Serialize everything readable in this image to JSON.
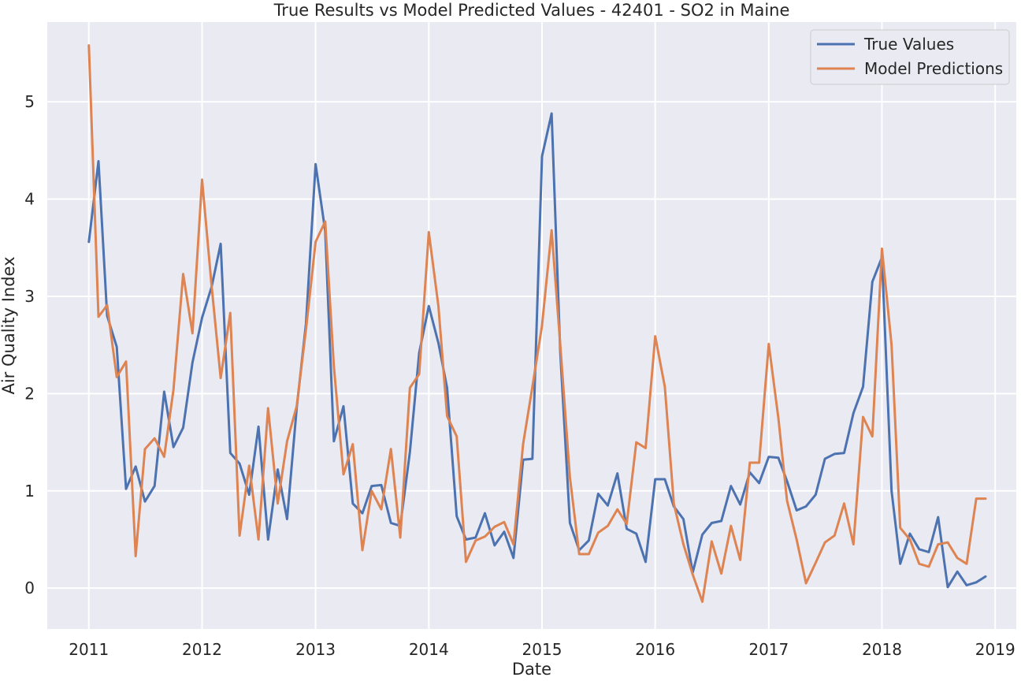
{
  "chart_data": {
    "type": "line",
    "title": "True Results vs Model Predicted Values - 42401 - SO2 in Maine",
    "xlabel": "Date",
    "ylabel": "Air Quality Index",
    "xlim": [
      "2010-08-20",
      "2019-03-10"
    ],
    "ylim": [
      -0.42,
      5.82
    ],
    "x_ticks": [
      "2011",
      "2012",
      "2013",
      "2014",
      "2015",
      "2016",
      "2017",
      "2018",
      "2019"
    ],
    "y_ticks": [
      0,
      1,
      2,
      3,
      4,
      5
    ],
    "grid": true,
    "legend_position": "top-right",
    "colors": {
      "background": "#eaeaf2",
      "grid": "#ffffff",
      "true_values": "#4c72b0",
      "model_predictions": "#dd8452"
    },
    "x": [
      "2011-01",
      "2011-02",
      "2011-03",
      "2011-04",
      "2011-05",
      "2011-06",
      "2011-07",
      "2011-08",
      "2011-09",
      "2011-10",
      "2011-11",
      "2011-12",
      "2012-01",
      "2012-02",
      "2012-03",
      "2012-04",
      "2012-05",
      "2012-06",
      "2012-07",
      "2012-08",
      "2012-09",
      "2012-10",
      "2012-11",
      "2012-12",
      "2013-01",
      "2013-02",
      "2013-03",
      "2013-04",
      "2013-05",
      "2013-06",
      "2013-07",
      "2013-08",
      "2013-09",
      "2013-10",
      "2013-11",
      "2013-12",
      "2014-01",
      "2014-02",
      "2014-03",
      "2014-04",
      "2014-05",
      "2014-06",
      "2014-07",
      "2014-08",
      "2014-09",
      "2014-10",
      "2014-11",
      "2014-12",
      "2015-01",
      "2015-02",
      "2015-03",
      "2015-04",
      "2015-05",
      "2015-06",
      "2015-07",
      "2015-08",
      "2015-09",
      "2015-10",
      "2015-11",
      "2015-12",
      "2016-01",
      "2016-02",
      "2016-03",
      "2016-04",
      "2016-05",
      "2016-06",
      "2016-07",
      "2016-08",
      "2016-09",
      "2016-10",
      "2016-11",
      "2016-12",
      "2017-01",
      "2017-02",
      "2017-03",
      "2017-04",
      "2017-05",
      "2017-06",
      "2017-07",
      "2017-08",
      "2017-09",
      "2017-10",
      "2017-11",
      "2017-12",
      "2018-01",
      "2018-02",
      "2018-03",
      "2018-04",
      "2018-05",
      "2018-06",
      "2018-07",
      "2018-08",
      "2018-09",
      "2018-10",
      "2018-11",
      "2018-12"
    ],
    "series": [
      {
        "name": "True Values",
        "color": "#4c72b0",
        "values": [
          3.56,
          4.39,
          2.8,
          2.48,
          1.02,
          1.25,
          0.89,
          1.05,
          2.02,
          1.45,
          1.65,
          2.32,
          2.78,
          3.1,
          3.54,
          1.39,
          1.28,
          0.96,
          1.66,
          0.5,
          1.22,
          0.71,
          1.85,
          2.72,
          4.36,
          3.67,
          1.51,
          1.87,
          0.87,
          0.77,
          1.05,
          1.06,
          0.67,
          0.64,
          1.4,
          2.42,
          2.9,
          2.52,
          2.06,
          0.74,
          0.5,
          0.52,
          0.77,
          0.44,
          0.58,
          0.31,
          1.32,
          1.33,
          4.44,
          4.88,
          2.42,
          0.67,
          0.39,
          0.49,
          0.97,
          0.85,
          1.18,
          0.61,
          0.56,
          0.27,
          1.12,
          1.12,
          0.84,
          0.71,
          0.16,
          0.55,
          0.67,
          0.69,
          1.05,
          0.86,
          1.19,
          1.08,
          1.35,
          1.34,
          1.1,
          0.8,
          0.84,
          0.96,
          1.33,
          1.38,
          1.39,
          1.8,
          2.07,
          3.15,
          3.4,
          1.0,
          0.25,
          0.56,
          0.4,
          0.37,
          0.73,
          0.01,
          0.17,
          0.03,
          0.06,
          0.12
        ]
      },
      {
        "name": "Model Predictions",
        "color": "#dd8452",
        "values": [
          5.58,
          2.79,
          2.91,
          2.17,
          2.33,
          0.33,
          1.43,
          1.54,
          1.35,
          2.04,
          3.23,
          2.62,
          4.2,
          3.1,
          2.16,
          2.83,
          0.54,
          1.26,
          0.5,
          1.85,
          0.87,
          1.51,
          1.87,
          2.66,
          3.56,
          3.77,
          2.28,
          1.17,
          1.48,
          0.39,
          1.0,
          0.81,
          1.43,
          0.52,
          2.06,
          2.2,
          3.66,
          2.9,
          1.77,
          1.56,
          0.27,
          0.49,
          0.53,
          0.63,
          0.68,
          0.45,
          1.48,
          2.07,
          2.7,
          3.68,
          2.5,
          1.14,
          0.35,
          0.35,
          0.57,
          0.64,
          0.81,
          0.66,
          1.5,
          1.44,
          2.59,
          2.07,
          0.87,
          0.45,
          0.14,
          -0.14,
          0.48,
          0.15,
          0.64,
          0.29,
          1.29,
          1.29,
          2.51,
          1.75,
          0.9,
          0.5,
          0.05,
          0.26,
          0.47,
          0.54,
          0.87,
          0.45,
          1.76,
          1.56,
          3.49,
          2.5,
          0.62,
          0.5,
          0.25,
          0.22,
          0.45,
          0.47,
          0.31,
          0.25,
          0.92,
          0.92
        ]
      }
    ]
  }
}
